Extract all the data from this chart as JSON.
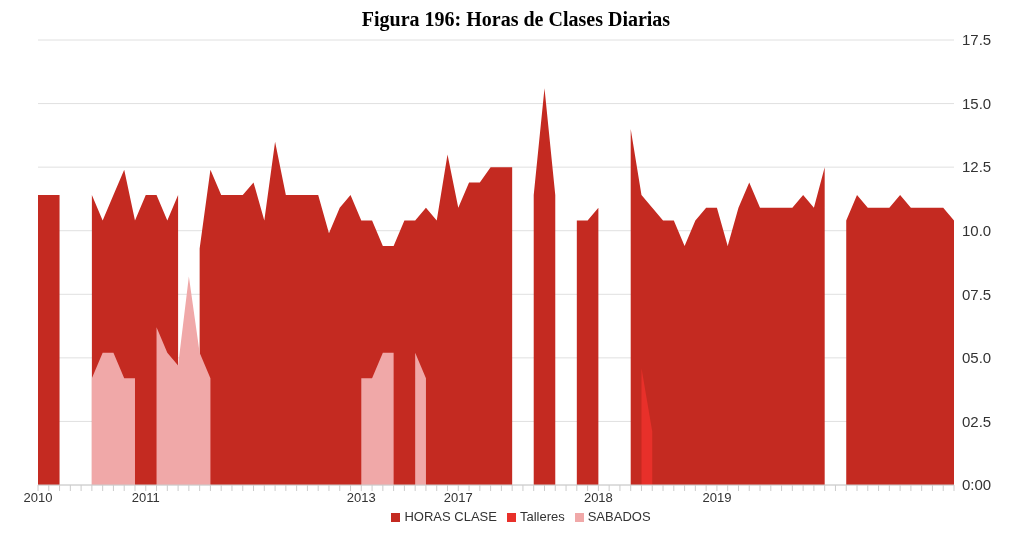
{
  "chart_data": {
    "type": "area",
    "title": "Figura 196: Horas de Clases Diarias",
    "categories": [
      "2010",
      null,
      null,
      null,
      null,
      null,
      null,
      null,
      null,
      null,
      "2011",
      null,
      null,
      null,
      null,
      null,
      null,
      null,
      null,
      null,
      null,
      null,
      null,
      null,
      null,
      null,
      null,
      null,
      null,
      null,
      "2013",
      null,
      null,
      null,
      null,
      null,
      null,
      null,
      null,
      "2017",
      null,
      null,
      null,
      null,
      null,
      null,
      null,
      null,
      null,
      null,
      null,
      null,
      "2018",
      null,
      null,
      null,
      null,
      null,
      null,
      null,
      null,
      null,
      null,
      "2019",
      null,
      null,
      null,
      null,
      null,
      null,
      null,
      null,
      null,
      null,
      null,
      null,
      null,
      null,
      null,
      null,
      null,
      null,
      null,
      null,
      null,
      null
    ],
    "series": [
      {
        "name": "HORAS CLASE",
        "color": "#c42a21",
        "values": [
          11.4,
          11.4,
          11.4,
          null,
          null,
          11.4,
          10.4,
          11.4,
          12.4,
          10.4,
          11.4,
          11.4,
          10.4,
          11.4,
          null,
          9.3,
          12.4,
          11.4,
          11.4,
          11.4,
          11.9,
          10.4,
          13.5,
          11.4,
          11.4,
          11.4,
          11.4,
          9.9,
          10.9,
          11.4,
          10.4,
          10.4,
          9.4,
          9.4,
          10.4,
          10.4,
          10.9,
          10.4,
          13.0,
          10.9,
          11.9,
          11.9,
          12.5,
          12.5,
          12.5,
          null,
          11.4,
          15.6,
          11.4,
          null,
          10.4,
          10.4,
          10.9,
          null,
          null,
          14.0,
          11.4,
          10.9,
          10.4,
          10.4,
          9.4,
          10.4,
          10.9,
          10.9,
          9.4,
          10.9,
          11.9,
          10.9,
          10.9,
          10.9,
          10.9,
          11.4,
          10.9,
          12.5,
          null,
          10.4,
          11.4,
          10.9,
          10.9,
          10.9,
          11.4,
          10.9,
          10.9,
          10.9,
          10.9,
          10.4
        ]
      },
      {
        "name": "Talleres",
        "color": "#e8302a",
        "values": [
          null,
          null,
          null,
          null,
          null,
          null,
          null,
          null,
          null,
          null,
          null,
          null,
          null,
          null,
          null,
          null,
          null,
          null,
          null,
          null,
          null,
          null,
          null,
          null,
          null,
          null,
          null,
          null,
          null,
          null,
          null,
          null,
          null,
          null,
          null,
          null,
          null,
          null,
          null,
          null,
          null,
          null,
          null,
          null,
          null,
          null,
          null,
          null,
          null,
          null,
          null,
          null,
          null,
          null,
          null,
          null,
          4.6,
          2.1,
          null,
          null,
          null,
          null,
          null,
          null,
          null,
          null,
          null,
          null,
          null,
          null,
          null,
          null,
          null,
          null,
          null,
          null,
          null,
          null,
          null,
          null,
          null,
          null,
          null,
          null,
          null,
          null
        ]
      },
      {
        "name": "SABADOS",
        "color": "#f0a8a8",
        "values": [
          null,
          null,
          null,
          null,
          null,
          4.2,
          5.2,
          5.2,
          4.2,
          4.2,
          null,
          6.2,
          5.2,
          4.7,
          8.2,
          5.2,
          4.2,
          null,
          null,
          null,
          null,
          null,
          null,
          null,
          null,
          null,
          null,
          null,
          null,
          null,
          4.2,
          4.2,
          5.2,
          5.2,
          null,
          5.2,
          4.2,
          null,
          null,
          null,
          null,
          null,
          null,
          null,
          null,
          null,
          null,
          null,
          null,
          null,
          null,
          null,
          null,
          null,
          null,
          null,
          null,
          null,
          null,
          null,
          null,
          null,
          null,
          null,
          null,
          null,
          null,
          null,
          null,
          null,
          null,
          null,
          null,
          null,
          null,
          null,
          null,
          null,
          null,
          null,
          null,
          null,
          null,
          null,
          null,
          null
        ]
      }
    ],
    "ylim": [
      0,
      17.5
    ],
    "yticks": [
      {
        "value": 0,
        "label": "0:00"
      },
      {
        "value": 2.5,
        "label": "02.5"
      },
      {
        "value": 5,
        "label": "05.0"
      },
      {
        "value": 7.5,
        "label": "07.5"
      },
      {
        "value": 10,
        "label": "10.0"
      },
      12.5,
      {
        "value": 15,
        "label": "15.0"
      },
      17.5
    ],
    "grid": "y",
    "legend": "bottom"
  }
}
